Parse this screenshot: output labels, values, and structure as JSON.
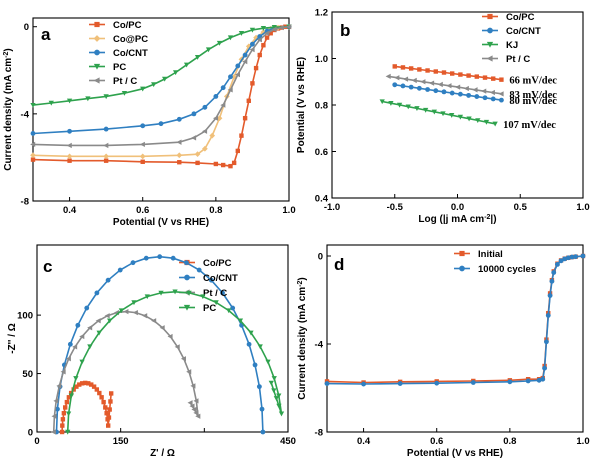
{
  "chart_data": [
    {
      "panel": "a",
      "type": "line",
      "xlabel": "Potential (V vs RHE)",
      "ylabel": "Current density (mA cm-2)",
      "xlim": [
        0.3,
        1.0
      ],
      "ylim": [
        -8,
        0.4
      ],
      "xticks": [
        0.4,
        0.6,
        0.8,
        1.0
      ],
      "yticks": [
        -8,
        -4,
        0
      ],
      "legend_position": "top-center",
      "series": [
        {
          "name": "Co/PC",
          "color": "#e35a2b",
          "marker": "square",
          "x": [
            0.3,
            0.4,
            0.5,
            0.6,
            0.7,
            0.75,
            0.8,
            0.82,
            0.84,
            0.85,
            0.86,
            0.87,
            0.88,
            0.89,
            0.9,
            0.91,
            0.92,
            0.93,
            0.94,
            0.95,
            0.96,
            0.97,
            0.98,
            0.99,
            1.0
          ],
          "y": [
            -6.1,
            -6.15,
            -6.15,
            -6.2,
            -6.22,
            -6.25,
            -6.3,
            -6.35,
            -6.4,
            -6.25,
            -5.7,
            -5.0,
            -4.2,
            -3.4,
            -2.6,
            -1.9,
            -1.3,
            -0.85,
            -0.5,
            -0.3,
            -0.15,
            -0.08,
            -0.04,
            0.0,
            0.0
          ]
        },
        {
          "name": "Co@PC",
          "color": "#f0c07a",
          "marker": "diamond",
          "x": [
            0.3,
            0.4,
            0.5,
            0.6,
            0.7,
            0.75,
            0.77,
            0.79,
            0.81,
            0.83,
            0.85,
            0.87,
            0.89,
            0.91,
            0.93,
            0.95,
            0.97,
            1.0
          ],
          "y": [
            -5.9,
            -5.95,
            -5.95,
            -5.95,
            -5.9,
            -5.85,
            -5.6,
            -5.0,
            -4.2,
            -3.2,
            -2.3,
            -1.5,
            -0.9,
            -0.5,
            -0.25,
            -0.1,
            -0.04,
            0.0
          ]
        },
        {
          "name": "Co/CNT",
          "color": "#2f7fc1",
          "marker": "circle",
          "x": [
            0.3,
            0.4,
            0.5,
            0.6,
            0.65,
            0.7,
            0.74,
            0.77,
            0.8,
            0.82,
            0.84,
            0.86,
            0.88,
            0.9,
            0.92,
            0.94,
            0.96,
            1.0
          ],
          "y": [
            -4.9,
            -4.8,
            -4.7,
            -4.55,
            -4.45,
            -4.25,
            -4.0,
            -3.7,
            -3.2,
            -2.8,
            -2.3,
            -1.8,
            -1.3,
            -0.8,
            -0.45,
            -0.2,
            -0.05,
            0.0
          ]
        },
        {
          "name": "PC",
          "color": "#2ea24d",
          "marker": "triangle-down",
          "x": [
            0.3,
            0.35,
            0.4,
            0.45,
            0.5,
            0.55,
            0.6,
            0.63,
            0.66,
            0.69,
            0.72,
            0.75,
            0.78,
            0.81,
            0.84,
            0.87,
            0.9,
            0.93,
            0.96,
            1.0
          ],
          "y": [
            -3.6,
            -3.5,
            -3.4,
            -3.3,
            -3.2,
            -3.05,
            -2.85,
            -2.65,
            -2.4,
            -2.1,
            -1.75,
            -1.4,
            -1.05,
            -0.75,
            -0.5,
            -0.3,
            -0.15,
            -0.07,
            -0.02,
            0.0
          ]
        },
        {
          "name": "Pt / C",
          "color": "#8a8a8a",
          "marker": "triangle-left",
          "x": [
            0.3,
            0.4,
            0.5,
            0.6,
            0.7,
            0.74,
            0.77,
            0.8,
            0.82,
            0.84,
            0.86,
            0.88,
            0.9,
            0.92,
            0.94,
            0.96,
            0.98,
            1.0
          ],
          "y": [
            -5.4,
            -5.45,
            -5.45,
            -5.4,
            -5.3,
            -5.1,
            -4.8,
            -4.2,
            -3.6,
            -2.9,
            -2.2,
            -1.6,
            -1.05,
            -0.6,
            -0.3,
            -0.12,
            -0.04,
            0.0
          ]
        }
      ]
    },
    {
      "panel": "b",
      "type": "scatter",
      "xlabel": "Log (|j mA cm-2|)",
      "ylabel": "Potential (V vs RHE)",
      "xlim": [
        -1.0,
        1.0
      ],
      "ylim": [
        0.4,
        1.2
      ],
      "xticks": [
        -1.0,
        -0.5,
        0.0,
        0.5,
        1.0
      ],
      "yticks": [
        0.4,
        0.6,
        0.8,
        1.0,
        1.2
      ],
      "legend_position": "top-right",
      "series": [
        {
          "name": "Co/PC",
          "color": "#e35a2b",
          "marker": "square",
          "x_range": [
            -0.5,
            0.35
          ],
          "y_range": [
            0.966,
            0.909
          ],
          "annotation": "66 mV/dec"
        },
        {
          "name": "Co/CNT",
          "color": "#2f7fc1",
          "marker": "circle",
          "x_range": [
            -0.5,
            0.35
          ],
          "y_range": [
            0.887,
            0.821
          ],
          "annotation": "80 mV/dec"
        },
        {
          "name": "KJ",
          "color": "#2ea24d",
          "marker": "triangle-down",
          "x_range": [
            -0.6,
            0.3
          ],
          "y_range": [
            0.815,
            0.719
          ],
          "annotation": "107 mV/dec"
        },
        {
          "name": "Pt / C",
          "color": "#8a8a8a",
          "marker": "triangle-left",
          "x_range": [
            -0.55,
            0.35
          ],
          "y_range": [
            0.923,
            0.848
          ],
          "annotation": "83 mV/dec"
        }
      ]
    },
    {
      "panel": "c",
      "type": "scatter",
      "xlabel": "Z' / Ω",
      "ylabel": "-Z'' / Ω",
      "xlim": [
        0,
        450
      ],
      "ylim": [
        0,
        160
      ],
      "xticks": [
        0,
        150,
        300,
        450
      ],
      "xtick_labels": [
        "0",
        "150",
        "",
        "450"
      ],
      "yticks": [
        0,
        50,
        100
      ],
      "legend_position": "top-right",
      "series": [
        {
          "name": "Co/PC",
          "color": "#e35a2b",
          "marker": "square",
          "arc": {
            "start": 45,
            "end": 128,
            "peak": 42
          },
          "tail_end": [
            133,
            33
          ]
        },
        {
          "name": "Co/CNT",
          "color": "#2f7fc1",
          "marker": "circle",
          "arc": {
            "start": 35,
            "end": 405,
            "peak": 150
          }
        },
        {
          "name": "Pt / C",
          "color": "#8a8a8a",
          "marker": "triangle-left",
          "arc": {
            "start": 30,
            "end": 290,
            "peak": 103
          },
          "tail_end": [
            275,
            25
          ]
        },
        {
          "name": "PC",
          "color": "#2ea24d",
          "marker": "triangle-down",
          "arc": {
            "start": 55,
            "end": 440,
            "peak": 120
          },
          "tail_end": [
            420,
            42
          ]
        }
      ]
    },
    {
      "panel": "d",
      "type": "line",
      "xlabel": "Potential (V vs RHE)",
      "ylabel": "Current density (mA cm-2)",
      "xlim": [
        0.3,
        1.0
      ],
      "ylim": [
        -8,
        0.5
      ],
      "xticks": [
        0.4,
        0.6,
        0.8,
        1.0
      ],
      "yticks": [
        -8,
        -4,
        0
      ],
      "legend_position": "top-left",
      "series": [
        {
          "name": "Initial",
          "color": "#e35a2b",
          "marker": "square",
          "x": [
            0.3,
            0.4,
            0.5,
            0.6,
            0.7,
            0.8,
            0.85,
            0.88,
            0.89,
            0.895,
            0.9,
            0.905,
            0.91,
            0.915,
            0.92,
            0.93,
            0.94,
            0.95,
            0.96,
            0.97,
            0.98,
            1.0
          ],
          "y": [
            -5.7,
            -5.75,
            -5.72,
            -5.7,
            -5.68,
            -5.65,
            -5.6,
            -5.6,
            -5.55,
            -5.0,
            -3.8,
            -2.6,
            -1.7,
            -1.1,
            -0.7,
            -0.35,
            -0.2,
            -0.12,
            -0.08,
            -0.05,
            -0.03,
            0.0
          ]
        },
        {
          "name": "10000 cycles",
          "color": "#2f7fc1",
          "marker": "circle",
          "x": [
            0.3,
            0.4,
            0.5,
            0.6,
            0.7,
            0.8,
            0.85,
            0.88,
            0.89,
            0.895,
            0.9,
            0.905,
            0.91,
            0.915,
            0.92,
            0.93,
            0.94,
            0.95,
            0.96,
            0.97,
            0.98,
            1.0
          ],
          "y": [
            -5.8,
            -5.82,
            -5.8,
            -5.78,
            -5.75,
            -5.72,
            -5.68,
            -5.65,
            -5.6,
            -5.1,
            -3.9,
            -2.7,
            -1.8,
            -1.15,
            -0.75,
            -0.38,
            -0.22,
            -0.13,
            -0.08,
            -0.05,
            -0.03,
            0.0
          ]
        }
      ]
    }
  ]
}
